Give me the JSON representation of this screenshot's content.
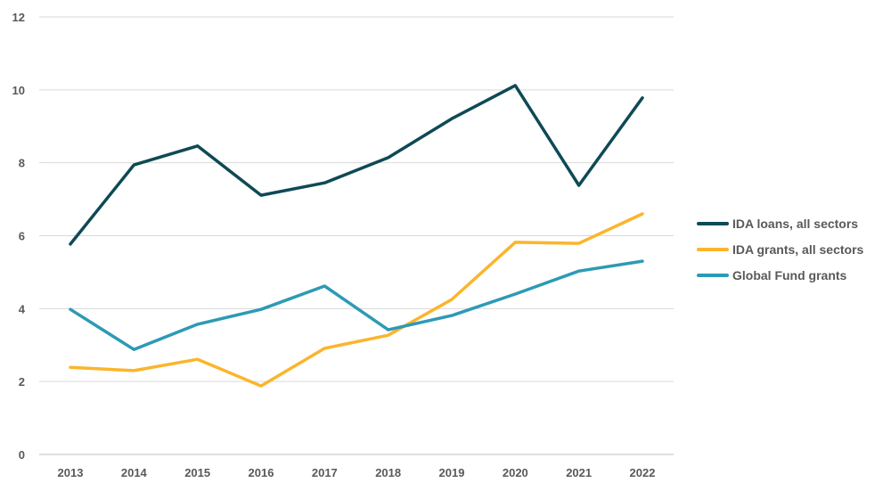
{
  "chart_data": {
    "type": "line",
    "title": "",
    "xlabel": "",
    "ylabel": "",
    "x": [
      "2013",
      "2014",
      "2015",
      "2016",
      "2017",
      "2018",
      "2019",
      "2020",
      "2021",
      "2022"
    ],
    "ylim": [
      0,
      12
    ],
    "yticks": [
      0,
      2,
      4,
      6,
      8,
      10,
      12
    ],
    "grid": true,
    "legend_position": "right",
    "series": [
      {
        "name": "IDA loans, all sectors",
        "color": "#0e4a55",
        "values": [
          5.77,
          7.94,
          8.46,
          7.11,
          7.45,
          8.14,
          9.21,
          10.12,
          7.38,
          9.78
        ]
      },
      {
        "name": "IDA grants, all sectors",
        "color": "#fbb52c",
        "values": [
          2.39,
          2.3,
          2.61,
          1.88,
          2.91,
          3.27,
          4.25,
          5.82,
          5.79,
          6.6
        ]
      },
      {
        "name": "Global Fund grants",
        "color": "#2d9ab5",
        "values": [
          3.98,
          2.88,
          3.57,
          3.98,
          4.62,
          3.42,
          3.81,
          4.4,
          5.03,
          5.3
        ]
      }
    ]
  }
}
